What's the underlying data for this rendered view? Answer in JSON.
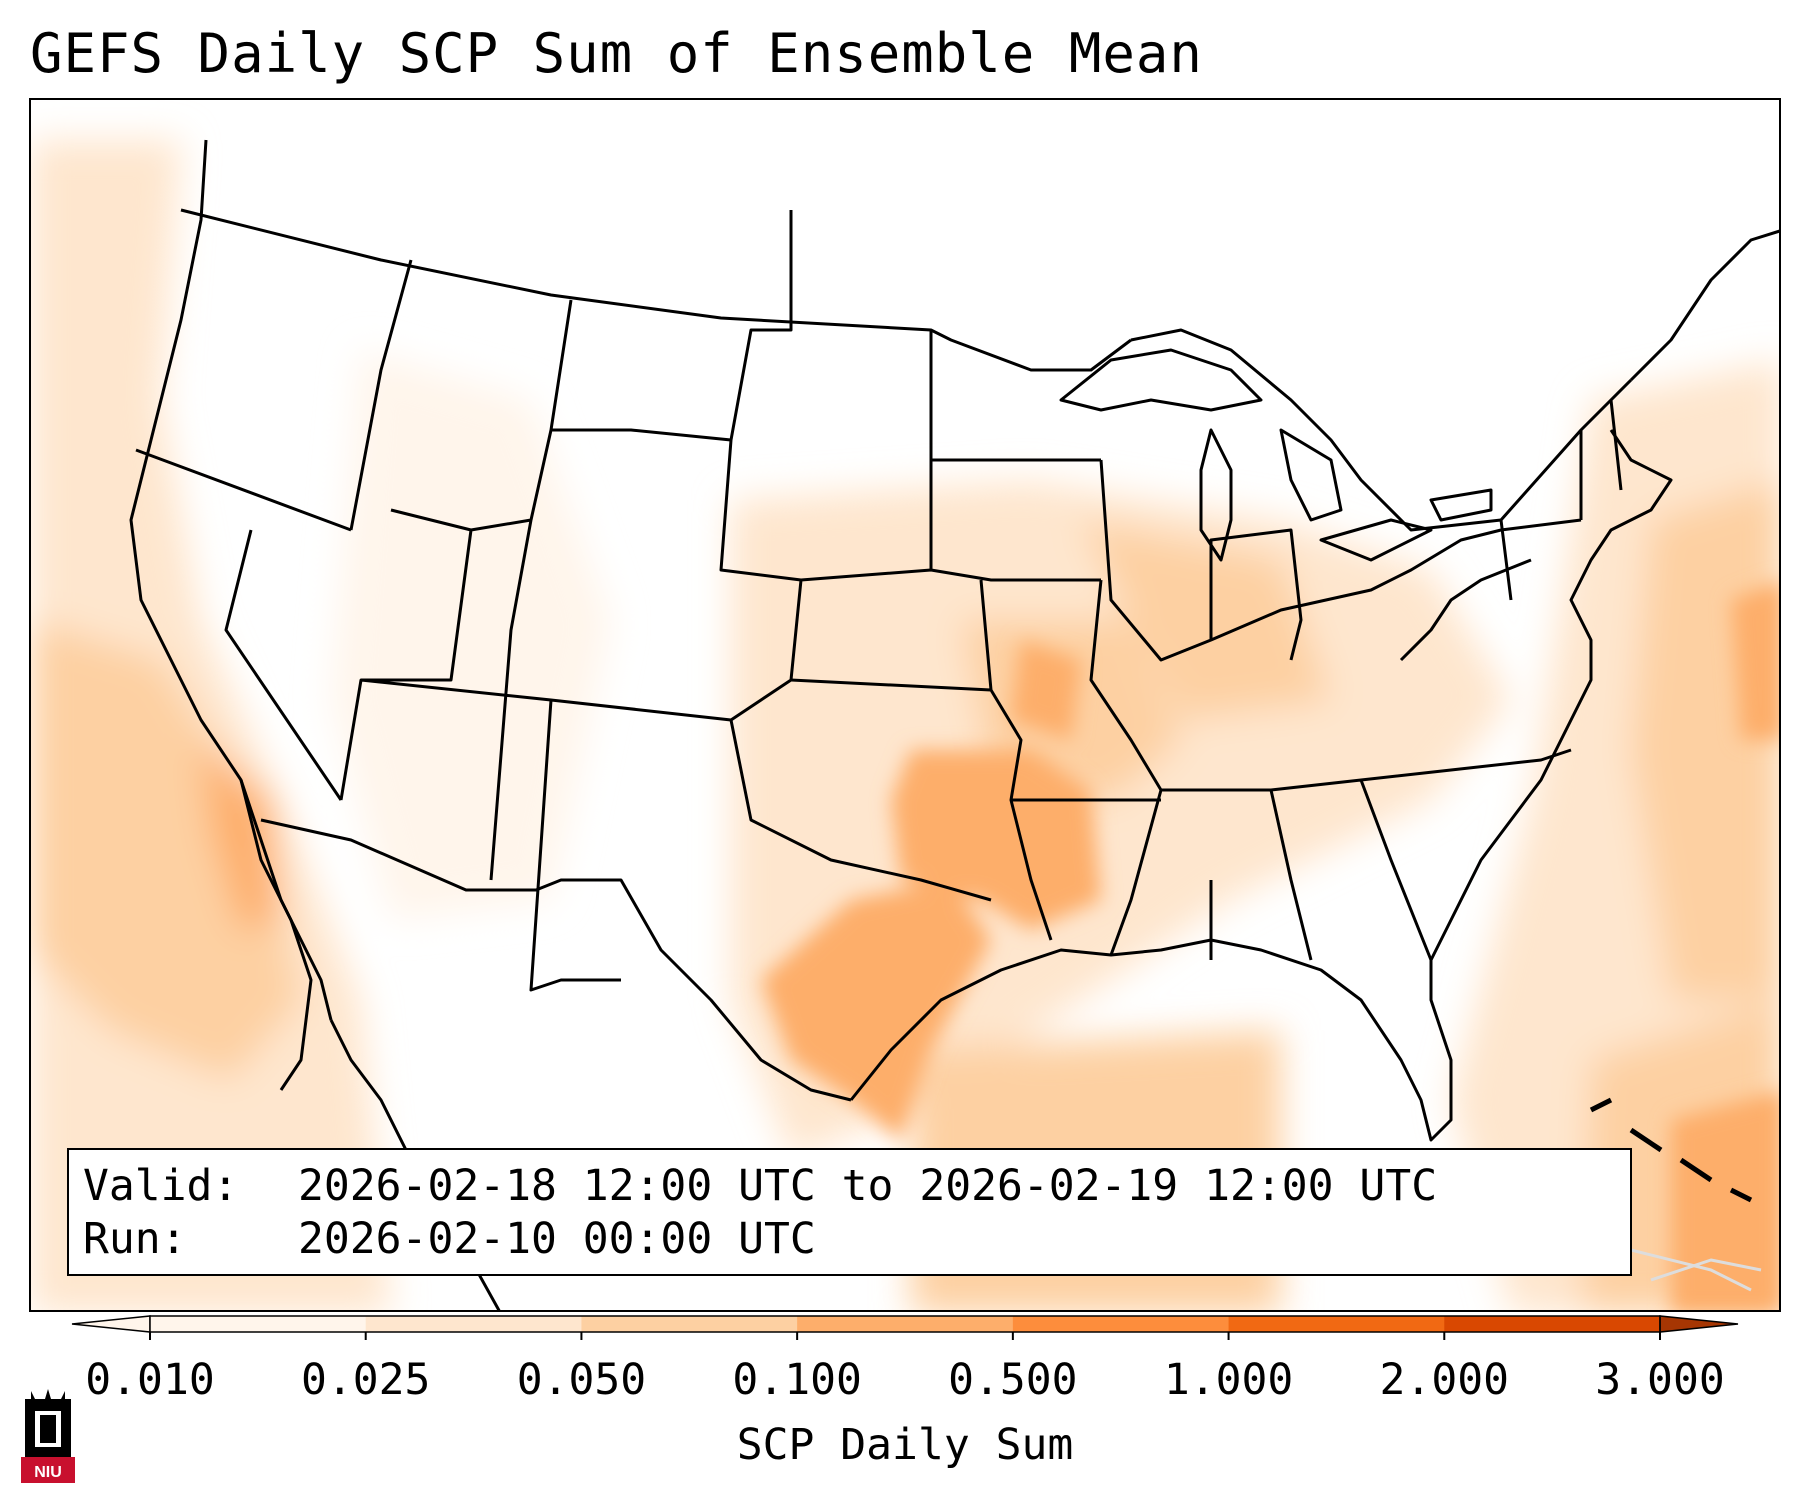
{
  "title": "GEFS Daily SCP Sum of Ensemble Mean",
  "info": {
    "valid_label": "Valid:",
    "valid_value": "2026-02-18 12:00 UTC to 2026-02-19 12:00 UTC",
    "run_label": "Run:",
    "run_value": "2026-02-10 00:00 UTC"
  },
  "colorbar": {
    "label": "SCP Daily Sum",
    "ticks": [
      "0.010",
      "0.025",
      "0.050",
      "0.100",
      "0.500",
      "1.000",
      "2.000",
      "3.000"
    ],
    "colors": [
      "#fff5eb",
      "#fee6ce",
      "#fdd0a2",
      "#fdae6b",
      "#fd8d3c",
      "#f16913",
      "#d94801",
      "#a63603"
    ],
    "extend": "both"
  },
  "logo": {
    "text": "NIU",
    "color": "#c8102e"
  },
  "map_data": {
    "projection": "Lambert Conformal",
    "region": "Continental United States",
    "highlight_areas": [
      {
        "region": "Oklahoma / Arkansas",
        "level": "0.100"
      },
      {
        "region": "Central Texas",
        "level": "0.100"
      },
      {
        "region": "Missouri",
        "level": "0.050-0.100"
      },
      {
        "region": "Western Gulf of Mexico",
        "level": "0.050"
      },
      {
        "region": "Southern California offshore",
        "level": "0.050-0.100"
      },
      {
        "region": "Western Atlantic",
        "level": "0.050-0.100"
      },
      {
        "region": "Caribbean near Hispaniola",
        "level": "0.100"
      }
    ]
  }
}
